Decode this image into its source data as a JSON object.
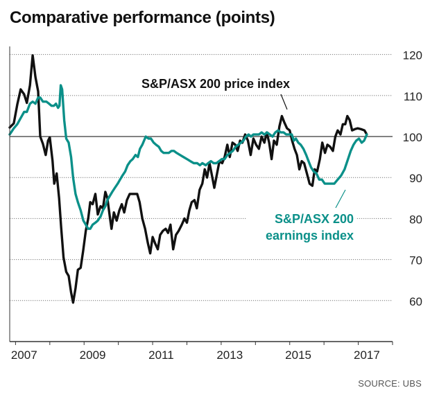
{
  "title": "Comparative performance (points)",
  "source": "SOURCE: UBS",
  "colors": {
    "price": "#111111",
    "earnings": "#0b9089",
    "grid": "#777777",
    "axis": "#333333"
  },
  "chart_data": {
    "type": "line",
    "title": "Comparative performance (points)",
    "xlim": [
      2006.83,
      2018.0
    ],
    "ylim": [
      50,
      124
    ],
    "y_ticks": [
      60,
      70,
      80,
      90,
      100,
      110,
      120
    ],
    "x_ticks": [
      2007,
      2009,
      2011,
      2013,
      2015,
      2017
    ],
    "x_tick_labels": [
      "2007",
      "2009",
      "2011",
      "2013",
      "2015",
      "2017"
    ],
    "reference_line": 100,
    "annotations": [
      {
        "series": "S&P/ASX 200 price index",
        "lines": [
          "S&P/ASX 200 price index"
        ]
      },
      {
        "series": "S&P/ASX 200 earnings index",
        "lines": [
          "S&P/ASX 200",
          "earnings index"
        ]
      }
    ],
    "series": [
      {
        "name": "S&P/ASX 200 price index",
        "color": "#111111",
        "points": [
          [
            2006.83,
            102.2
          ],
          [
            2006.95,
            103.2
          ],
          [
            2007.05,
            107.8
          ],
          [
            2007.15,
            111.5
          ],
          [
            2007.25,
            110.3
          ],
          [
            2007.33,
            108.2
          ],
          [
            2007.42,
            112.5
          ],
          [
            2007.5,
            119.8
          ],
          [
            2007.58,
            114.5
          ],
          [
            2007.66,
            111.0
          ],
          [
            2007.72,
            100.0
          ],
          [
            2007.8,
            98.2
          ],
          [
            2007.88,
            95.5
          ],
          [
            2007.95,
            99.0
          ],
          [
            2008.0,
            99.8
          ],
          [
            2008.08,
            94.0
          ],
          [
            2008.13,
            88.5
          ],
          [
            2008.2,
            91.0
          ],
          [
            2008.27,
            85.0
          ],
          [
            2008.33,
            78.0
          ],
          [
            2008.4,
            70.5
          ],
          [
            2008.48,
            67.0
          ],
          [
            2008.55,
            66.0
          ],
          [
            2008.62,
            62.0
          ],
          [
            2008.68,
            59.5
          ],
          [
            2008.75,
            63.0
          ],
          [
            2008.82,
            67.5
          ],
          [
            2008.9,
            68.0
          ],
          [
            2008.97,
            72.0
          ],
          [
            2009.05,
            77.0
          ],
          [
            2009.12,
            80.0
          ],
          [
            2009.18,
            84.0
          ],
          [
            2009.25,
            83.5
          ],
          [
            2009.33,
            86.0
          ],
          [
            2009.4,
            81.0
          ],
          [
            2009.48,
            83.0
          ],
          [
            2009.55,
            82.5
          ],
          [
            2009.62,
            86.5
          ],
          [
            2009.68,
            85.0
          ],
          [
            2009.75,
            80.5
          ],
          [
            2009.8,
            77.5
          ],
          [
            2009.87,
            81.5
          ],
          [
            2009.95,
            79.5
          ],
          [
            2010.03,
            82.0
          ],
          [
            2010.1,
            83.5
          ],
          [
            2010.17,
            81.5
          ],
          [
            2010.25,
            84.5
          ],
          [
            2010.33,
            86.0
          ],
          [
            2010.45,
            86.0
          ],
          [
            2010.55,
            86.0
          ],
          [
            2010.62,
            84.0
          ],
          [
            2010.7,
            80.0
          ],
          [
            2010.78,
            77.5
          ],
          [
            2010.86,
            74.0
          ],
          [
            2010.93,
            71.5
          ],
          [
            2011.0,
            75.5
          ],
          [
            2011.07,
            74.0
          ],
          [
            2011.15,
            72.5
          ],
          [
            2011.22,
            76.0
          ],
          [
            2011.3,
            77.0
          ],
          [
            2011.38,
            77.5
          ],
          [
            2011.45,
            76.5
          ],
          [
            2011.52,
            78.5
          ],
          [
            2011.6,
            72.5
          ],
          [
            2011.68,
            76.0
          ],
          [
            2011.76,
            77.0
          ],
          [
            2011.85,
            78.5
          ],
          [
            2011.93,
            80.0
          ],
          [
            2012.0,
            79.0
          ],
          [
            2012.07,
            82.0
          ],
          [
            2012.14,
            84.0
          ],
          [
            2012.22,
            84.5
          ],
          [
            2012.29,
            82.5
          ],
          [
            2012.37,
            87.0
          ],
          [
            2012.45,
            88.5
          ],
          [
            2012.52,
            92.0
          ],
          [
            2012.59,
            90.0
          ],
          [
            2012.66,
            93.5
          ],
          [
            2012.73,
            90.5
          ],
          [
            2012.8,
            87.5
          ],
          [
            2012.88,
            91.0
          ],
          [
            2012.95,
            94.0
          ],
          [
            2013.03,
            93.5
          ],
          [
            2013.1,
            95.0
          ],
          [
            2013.18,
            98.0
          ],
          [
            2013.25,
            95.0
          ],
          [
            2013.33,
            98.5
          ],
          [
            2013.41,
            98.0
          ],
          [
            2013.48,
            96.5
          ],
          [
            2013.55,
            99.0
          ],
          [
            2013.62,
            98.5
          ],
          [
            2013.7,
            100.5
          ],
          [
            2013.78,
            99.0
          ],
          [
            2013.86,
            95.5
          ],
          [
            2013.94,
            99.5
          ],
          [
            2014.02,
            98.0
          ],
          [
            2014.1,
            97.0
          ],
          [
            2014.18,
            100.0
          ],
          [
            2014.26,
            98.5
          ],
          [
            2014.33,
            101.0
          ],
          [
            2014.4,
            98.5
          ],
          [
            2014.47,
            94.5
          ],
          [
            2014.54,
            99.0
          ],
          [
            2014.62,
            98.0
          ],
          [
            2014.7,
            102.5
          ],
          [
            2014.77,
            105.0
          ],
          [
            2014.84,
            103.5
          ],
          [
            2014.92,
            102.0
          ],
          [
            2015.0,
            101.5
          ],
          [
            2015.07,
            99.0
          ],
          [
            2015.14,
            97.0
          ],
          [
            2015.21,
            95.5
          ],
          [
            2015.28,
            92.0
          ],
          [
            2015.35,
            94.0
          ],
          [
            2015.42,
            93.5
          ],
          [
            2015.5,
            91.0
          ],
          [
            2015.58,
            88.5
          ],
          [
            2015.66,
            88.0
          ],
          [
            2015.73,
            92.0
          ],
          [
            2015.8,
            91.5
          ],
          [
            2015.88,
            94.5
          ],
          [
            2015.95,
            98.5
          ],
          [
            2016.03,
            96.0
          ],
          [
            2016.1,
            98.0
          ],
          [
            2016.18,
            97.5
          ],
          [
            2016.26,
            96.5
          ],
          [
            2016.33,
            100.0
          ],
          [
            2016.4,
            101.5
          ],
          [
            2016.48,
            100.5
          ],
          [
            2016.55,
            103.0
          ],
          [
            2016.62,
            103.0
          ],
          [
            2016.68,
            105.0
          ],
          [
            2016.75,
            104.0
          ],
          [
            2016.82,
            101.5
          ],
          [
            2016.9,
            101.8
          ],
          [
            2016.98,
            102.0
          ],
          [
            2017.08,
            101.8
          ],
          [
            2017.18,
            101.5
          ],
          [
            2017.25,
            100.5
          ]
        ]
      },
      {
        "name": "S&P/ASX 200 earnings index",
        "color": "#0b9089",
        "points": [
          [
            2006.83,
            100.5
          ],
          [
            2006.95,
            102.0
          ],
          [
            2007.05,
            103.0
          ],
          [
            2007.15,
            104.5
          ],
          [
            2007.25,
            106.0
          ],
          [
            2007.33,
            106.0
          ],
          [
            2007.42,
            108.0
          ],
          [
            2007.5,
            108.5
          ],
          [
            2007.58,
            108.0
          ],
          [
            2007.66,
            109.5
          ],
          [
            2007.72,
            109.5
          ],
          [
            2007.8,
            108.5
          ],
          [
            2007.9,
            108.5
          ],
          [
            2007.98,
            108.0
          ],
          [
            2008.05,
            107.5
          ],
          [
            2008.12,
            107.5
          ],
          [
            2008.18,
            108.0
          ],
          [
            2008.24,
            107.0
          ],
          [
            2008.28,
            107.5
          ],
          [
            2008.32,
            112.5
          ],
          [
            2008.36,
            111.5
          ],
          [
            2008.42,
            104.0
          ],
          [
            2008.48,
            99.5
          ],
          [
            2008.55,
            98.5
          ],
          [
            2008.62,
            95.0
          ],
          [
            2008.68,
            90.0
          ],
          [
            2008.75,
            86.0
          ],
          [
            2008.82,
            84.0
          ],
          [
            2008.9,
            82.0
          ],
          [
            2008.98,
            79.5
          ],
          [
            2009.05,
            78.5
          ],
          [
            2009.12,
            77.5
          ],
          [
            2009.18,
            77.5
          ],
          [
            2009.25,
            78.5
          ],
          [
            2009.33,
            79.0
          ],
          [
            2009.4,
            79.5
          ],
          [
            2009.48,
            80.5
          ],
          [
            2009.55,
            82.0
          ],
          [
            2009.62,
            83.0
          ],
          [
            2009.68,
            84.5
          ],
          [
            2009.75,
            85.5
          ],
          [
            2009.82,
            86.5
          ],
          [
            2009.9,
            87.5
          ],
          [
            2009.98,
            88.5
          ],
          [
            2010.05,
            89.5
          ],
          [
            2010.12,
            90.5
          ],
          [
            2010.2,
            91.5
          ],
          [
            2010.27,
            93.0
          ],
          [
            2010.35,
            94.0
          ],
          [
            2010.42,
            94.5
          ],
          [
            2010.5,
            95.5
          ],
          [
            2010.57,
            95.0
          ],
          [
            2010.63,
            97.0
          ],
          [
            2010.7,
            98.0
          ],
          [
            2010.75,
            99.0
          ],
          [
            2010.8,
            100.0
          ],
          [
            2010.88,
            99.5
          ],
          [
            2010.95,
            99.5
          ],
          [
            2011.03,
            98.5
          ],
          [
            2011.1,
            98.0
          ],
          [
            2011.18,
            97.5
          ],
          [
            2011.25,
            96.5
          ],
          [
            2011.32,
            96.0
          ],
          [
            2011.4,
            96.0
          ],
          [
            2011.47,
            96.0
          ],
          [
            2011.55,
            96.5
          ],
          [
            2011.62,
            96.5
          ],
          [
            2011.7,
            96.0
          ],
          [
            2011.8,
            95.5
          ],
          [
            2011.9,
            95.0
          ],
          [
            2012.0,
            94.5
          ],
          [
            2012.1,
            94.0
          ],
          [
            2012.2,
            93.5
          ],
          [
            2012.3,
            93.5
          ],
          [
            2012.38,
            93.0
          ],
          [
            2012.45,
            93.5
          ],
          [
            2012.55,
            93.0
          ],
          [
            2012.62,
            93.5
          ],
          [
            2012.7,
            94.0
          ],
          [
            2012.78,
            93.5
          ],
          [
            2012.86,
            93.5
          ],
          [
            2012.94,
            94.0
          ],
          [
            2013.02,
            94.5
          ],
          [
            2013.1,
            94.5
          ],
          [
            2013.18,
            95.5
          ],
          [
            2013.26,
            96.0
          ],
          [
            2013.34,
            96.5
          ],
          [
            2013.42,
            97.5
          ],
          [
            2013.5,
            98.0
          ],
          [
            2013.58,
            98.5
          ],
          [
            2013.65,
            99.0
          ],
          [
            2013.72,
            100.0
          ],
          [
            2013.8,
            100.5
          ],
          [
            2013.87,
            100.0
          ],
          [
            2013.94,
            100.5
          ],
          [
            2014.02,
            100.5
          ],
          [
            2014.1,
            100.5
          ],
          [
            2014.18,
            101.0
          ],
          [
            2014.26,
            100.5
          ],
          [
            2014.34,
            101.0
          ],
          [
            2014.42,
            100.5
          ],
          [
            2014.5,
            100.0
          ],
          [
            2014.58,
            101.0
          ],
          [
            2014.66,
            101.5
          ],
          [
            2014.74,
            101.0
          ],
          [
            2014.82,
            101.0
          ],
          [
            2014.9,
            100.5
          ],
          [
            2014.98,
            100.5
          ],
          [
            2015.06,
            100.5
          ],
          [
            2015.12,
            99.0
          ],
          [
            2015.18,
            99.5
          ],
          [
            2015.25,
            98.5
          ],
          [
            2015.32,
            98.0
          ],
          [
            2015.4,
            97.0
          ],
          [
            2015.48,
            95.5
          ],
          [
            2015.55,
            94.0
          ],
          [
            2015.62,
            92.5
          ],
          [
            2015.7,
            91.5
          ],
          [
            2015.78,
            91.0
          ],
          [
            2015.86,
            89.5
          ],
          [
            2015.94,
            89.5
          ],
          [
            2016.02,
            88.5
          ],
          [
            2016.1,
            88.5
          ],
          [
            2016.2,
            88.5
          ],
          [
            2016.3,
            88.5
          ],
          [
            2016.4,
            89.5
          ],
          [
            2016.5,
            90.5
          ],
          [
            2016.6,
            92.0
          ],
          [
            2016.7,
            94.5
          ],
          [
            2016.78,
            96.5
          ],
          [
            2016.86,
            98.0
          ],
          [
            2016.94,
            99.0
          ],
          [
            2017.02,
            99.5
          ],
          [
            2017.1,
            98.5
          ],
          [
            2017.17,
            99.0
          ],
          [
            2017.25,
            100.5
          ]
        ]
      }
    ]
  }
}
